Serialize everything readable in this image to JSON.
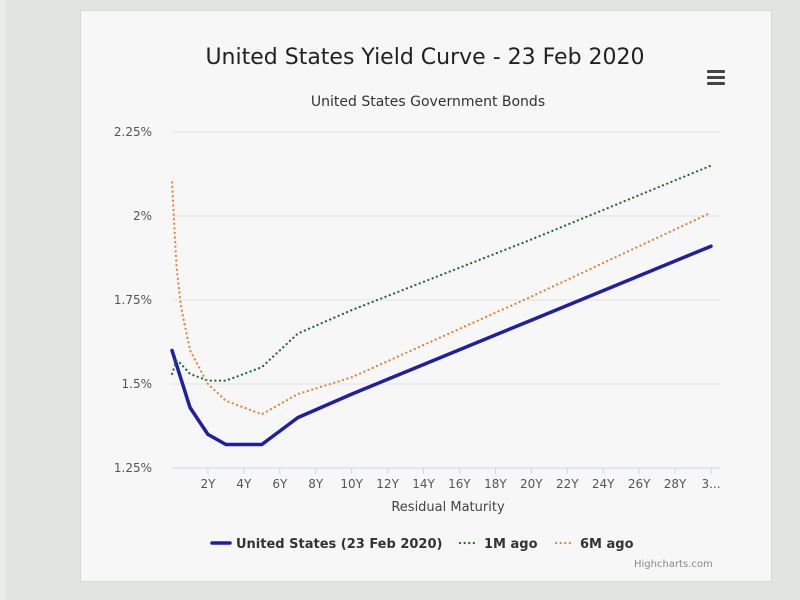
{
  "colors": {
    "us": "#1f1fa6",
    "m1": "#1f6b2e",
    "m6": "#e8823a",
    "grid": "#e0e2e0",
    "axis": "#ccd6eb",
    "text": "#555555"
  },
  "menu": {
    "icon": "hamburger-menu-icon"
  },
  "credits": "Highcharts.com",
  "chart_data": {
    "type": "line",
    "title": "United States Yield Curve - 23 Feb 2020",
    "subtitle": "United States Government Bonds",
    "xlabel": "Residual Maturity",
    "ylabel": "",
    "xlim": [
      0,
      30.5
    ],
    "ylim": [
      1.25,
      2.25
    ],
    "x_ticks": [
      {
        "v": 2,
        "label": "2Y"
      },
      {
        "v": 4,
        "label": "4Y"
      },
      {
        "v": 6,
        "label": "6Y"
      },
      {
        "v": 8,
        "label": "8Y"
      },
      {
        "v": 10,
        "label": "10Y"
      },
      {
        "v": 12,
        "label": "12Y"
      },
      {
        "v": 14,
        "label": "14Y"
      },
      {
        "v": 16,
        "label": "16Y"
      },
      {
        "v": 18,
        "label": "18Y"
      },
      {
        "v": 20,
        "label": "20Y"
      },
      {
        "v": 22,
        "label": "22Y"
      },
      {
        "v": 24,
        "label": "24Y"
      },
      {
        "v": 26,
        "label": "26Y"
      },
      {
        "v": 28,
        "label": "28Y"
      },
      {
        "v": 30,
        "label": "3..."
      }
    ],
    "y_ticks": [
      {
        "v": 1.25,
        "label": "1.25%"
      },
      {
        "v": 1.5,
        "label": "1.5%"
      },
      {
        "v": 1.75,
        "label": "1.75%"
      },
      {
        "v": 2.0,
        "label": "2%"
      },
      {
        "v": 2.25,
        "label": "2.25%"
      }
    ],
    "legend": "bottom",
    "series": [
      {
        "name": "United States (23 Feb 2020)",
        "key": "us",
        "style": "solid",
        "points": [
          [
            0,
            1.6
          ],
          [
            1,
            1.43
          ],
          [
            2,
            1.35
          ],
          [
            3,
            1.32
          ],
          [
            5,
            1.32
          ],
          [
            7,
            1.4
          ],
          [
            10,
            1.47
          ],
          [
            20,
            1.69
          ],
          [
            30,
            1.91
          ]
        ]
      },
      {
        "name": "1M ago",
        "key": "m1",
        "style": "dotted",
        "points": [
          [
            0,
            1.53
          ],
          [
            0.25,
            1.57
          ],
          [
            0.5,
            1.56
          ],
          [
            1,
            1.53
          ],
          [
            2,
            1.51
          ],
          [
            3,
            1.51
          ],
          [
            5,
            1.55
          ],
          [
            7,
            1.65
          ],
          [
            10,
            1.72
          ],
          [
            20,
            1.93
          ],
          [
            30,
            2.15
          ]
        ]
      },
      {
        "name": "6M ago",
        "key": "m6",
        "style": "dotted",
        "points": [
          [
            0,
            2.1
          ],
          [
            0.25,
            1.85
          ],
          [
            0.5,
            1.73
          ],
          [
            1,
            1.6
          ],
          [
            2,
            1.5
          ],
          [
            3,
            1.45
          ],
          [
            5,
            1.41
          ],
          [
            7,
            1.47
          ],
          [
            10,
            1.52
          ],
          [
            20,
            1.76
          ],
          [
            30,
            2.01
          ]
        ]
      }
    ]
  }
}
